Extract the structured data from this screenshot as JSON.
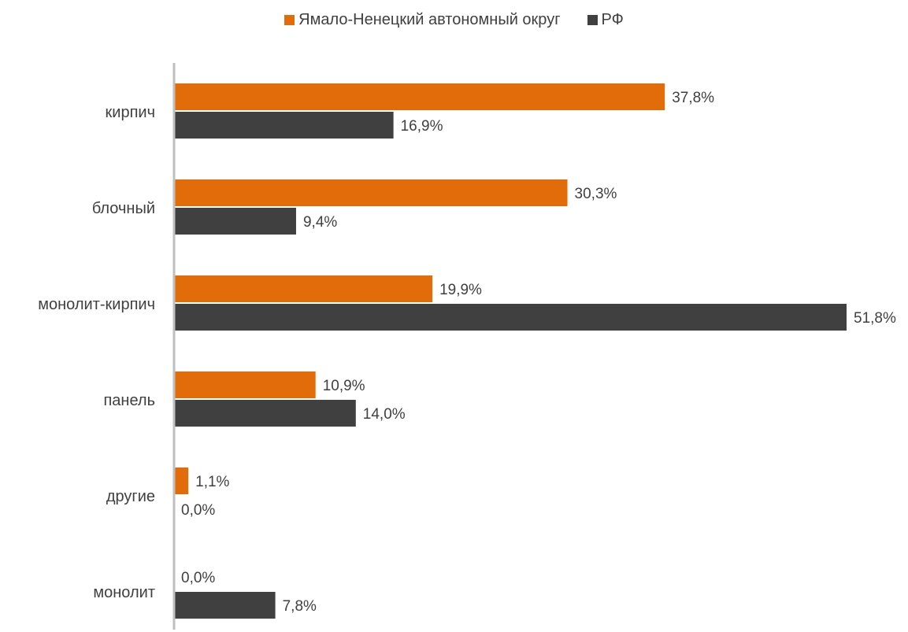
{
  "chart_data": {
    "type": "bar",
    "orientation": "horizontal",
    "categories": [
      "кирпич",
      "блочный",
      "монолит-кирпич",
      "панель",
      "другие",
      "монолит"
    ],
    "series": [
      {
        "name": "Ямало-Ненецкий автономный округ",
        "color": "#E36C0A",
        "values": [
          37.8,
          30.3,
          19.9,
          10.9,
          1.1,
          0.0
        ],
        "labels": [
          "37,8%",
          "30,3%",
          "19,9%",
          "10,9%",
          "1,1%",
          "0,0%"
        ]
      },
      {
        "name": "РФ",
        "color": "#404040",
        "values": [
          16.9,
          9.4,
          51.8,
          14.0,
          0.0,
          7.8
        ],
        "labels": [
          "16,9%",
          "9,4%",
          "51,8%",
          "14,0%",
          "0,0%",
          "7,8%"
        ]
      }
    ],
    "xlim": [
      0,
      51.8
    ],
    "legend_position": "top-center",
    "grid": false
  }
}
